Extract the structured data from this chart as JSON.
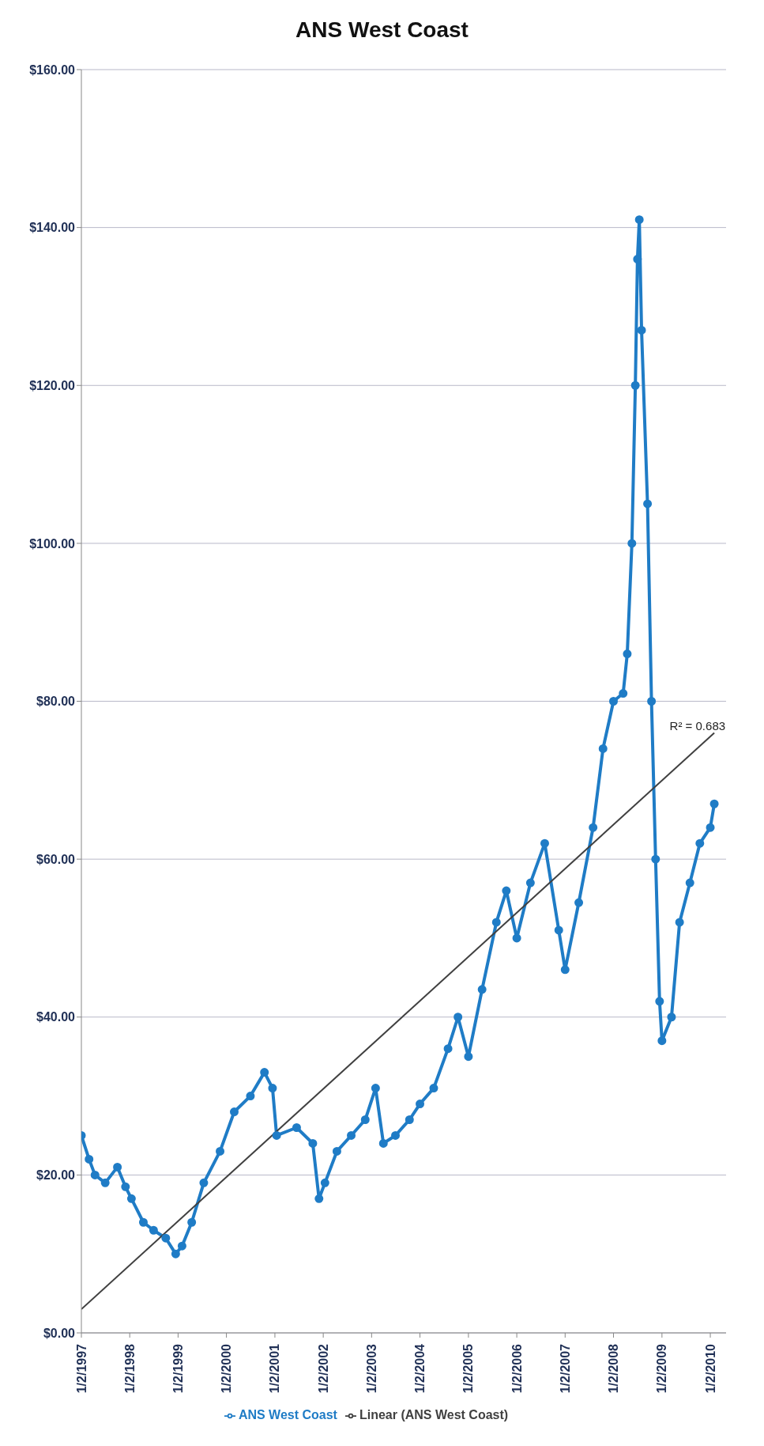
{
  "chart_data": {
    "type": "line",
    "title": "ANS West Coast",
    "xlim": [
      "1997-01-02",
      "2010-05-01"
    ],
    "xticks": [
      {
        "value": "1997-01-02",
        "label": "1/2/1997"
      },
      {
        "value": "1998-01-02",
        "label": "1/2/1998"
      },
      {
        "value": "1999-01-02",
        "label": "1/2/1999"
      },
      {
        "value": "2000-01-02",
        "label": "1/2/2000"
      },
      {
        "value": "2001-01-02",
        "label": "1/2/2001"
      },
      {
        "value": "2002-01-02",
        "label": "1/2/2002"
      },
      {
        "value": "2003-01-02",
        "label": "1/2/2003"
      },
      {
        "value": "2004-01-02",
        "label": "1/2/2004"
      },
      {
        "value": "2005-01-02",
        "label": "1/2/2005"
      },
      {
        "value": "2006-01-02",
        "label": "1/2/2006"
      },
      {
        "value": "2007-01-02",
        "label": "1/2/2007"
      },
      {
        "value": "2008-01-02",
        "label": "1/2/2008"
      },
      {
        "value": "2009-01-02",
        "label": "1/2/2009"
      },
      {
        "value": "2010-01-02",
        "label": "1/2/2010"
      }
    ],
    "ylim": [
      0,
      160
    ],
    "yticks": [
      {
        "value": 0,
        "label": "$0.00"
      },
      {
        "value": 20,
        "label": "$20.00"
      },
      {
        "value": 40,
        "label": "$40.00"
      },
      {
        "value": 60,
        "label": "$60.00"
      },
      {
        "value": 80,
        "label": "$80.00"
      },
      {
        "value": 100,
        "label": "$100.00"
      },
      {
        "value": 120,
        "label": "$120.00"
      },
      {
        "value": 140,
        "label": "$140.00"
      },
      {
        "value": 160,
        "label": "$160.00"
      }
    ],
    "grid": "y",
    "legend": "bottom",
    "marker": "circle",
    "annotations": [
      {
        "text": "R² = 0.683",
        "x": "2010-02-01",
        "y": 76
      }
    ],
    "series": [
      {
        "name": "ANS West Coast",
        "color": "#1f7cc6",
        "x": [
          "1997-01-02",
          "1997-03-01",
          "1997-04-15",
          "1997-07-01",
          "1997-10-01",
          "1997-12-01",
          "1998-01-15",
          "1998-04-15",
          "1998-07-01",
          "1998-10-01",
          "1998-12-15",
          "1999-02-01",
          "1999-04-15",
          "1999-07-15",
          "1999-11-15",
          "2000-03-01",
          "2000-07-01",
          "2000-10-15",
          "2000-12-15",
          "2001-01-15",
          "2001-06-15",
          "2001-10-15",
          "2001-12-01",
          "2002-01-15",
          "2002-04-15",
          "2002-08-01",
          "2002-11-15",
          "2003-02-01",
          "2003-04-01",
          "2003-07-01",
          "2003-10-15",
          "2004-01-02",
          "2004-04-15",
          "2004-08-01",
          "2004-10-15",
          "2005-01-02",
          "2005-04-15",
          "2005-08-01",
          "2005-10-15",
          "2006-01-02",
          "2006-04-15",
          "2006-08-01",
          "2006-11-15",
          "2007-01-02",
          "2007-04-15",
          "2007-08-01",
          "2007-10-15",
          "2008-01-02",
          "2008-03-15",
          "2008-04-15",
          "2008-05-20",
          "2008-06-15",
          "2008-07-01",
          "2008-07-15",
          "2008-08-01",
          "2008-09-15",
          "2008-10-15",
          "2008-11-15",
          "2008-12-15",
          "2009-01-02",
          "2009-03-15",
          "2009-05-15",
          "2009-08-01",
          "2009-10-15",
          "2010-01-02",
          "2010-02-01"
        ],
        "values": [
          25,
          22,
          20,
          19,
          21,
          18.5,
          17,
          14,
          13,
          12,
          10,
          11,
          14,
          19,
          23,
          28,
          30,
          33,
          31,
          25,
          26,
          24,
          17,
          19,
          23,
          25,
          27,
          31,
          24,
          25,
          27,
          29,
          31,
          36,
          40,
          35,
          43.5,
          52,
          56,
          50,
          57,
          62,
          51,
          46,
          54.5,
          64,
          74,
          80,
          81,
          86,
          100,
          120,
          136,
          141,
          127,
          105,
          80,
          60,
          42,
          37,
          40,
          52,
          57,
          62,
          64,
          67
        ]
      },
      {
        "name": "Linear (ANS West Coast)",
        "type": "line",
        "color": "#404040",
        "marker": "none",
        "x": [
          "1997-01-02",
          "2010-02-01"
        ],
        "values": [
          3,
          76
        ]
      }
    ]
  }
}
